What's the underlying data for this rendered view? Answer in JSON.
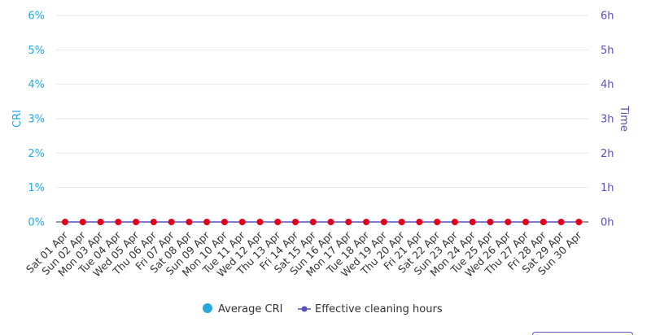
{
  "chart_data": {
    "type": "line",
    "categories": [
      "Sat 01 Apr",
      "Sun 02 Apr",
      "Mon 03 Apr",
      "Tue 04 Apr",
      "Wed 05 Apr",
      "Thu 06 Apr",
      "Fri 07 Apr",
      "Sat 08 Apr",
      "Sun 09 Apr",
      "Mon 10 Apr",
      "Tue 11 Apr",
      "Wed 12 Apr",
      "Thu 13 Apr",
      "Fri 14 Apr",
      "Sat 15 Apr",
      "Sun 16 Apr",
      "Mon 17 Apr",
      "Tue 18 Apr",
      "Wed 19 Apr",
      "Thu 20 Apr",
      "Fri 21 Apr",
      "Sat 22 Apr",
      "Sun 23 Apr",
      "Mon 24 Apr",
      "Tue 25 Apr",
      "Wed 26 Apr",
      "Thu 27 Apr",
      "Fri 28 Apr",
      "Sat 29 Apr",
      "Sun 30 Apr"
    ],
    "series": [
      {
        "name": "Average CRI",
        "axis": "left",
        "color": "#29a8e0",
        "values": [
          0,
          0,
          0,
          0,
          0,
          0,
          0,
          0,
          0,
          0,
          0,
          0,
          0,
          0,
          0,
          0,
          0,
          0,
          0,
          0,
          0,
          0,
          0,
          0,
          0,
          0,
          0,
          0,
          0,
          0
        ]
      },
      {
        "name": "Effective cleaning hours",
        "axis": "right",
        "color": "#5a4fbf",
        "values": [
          0,
          0,
          0,
          0,
          0,
          0,
          0,
          0,
          0,
          0,
          0,
          0,
          0,
          0,
          0,
          0,
          0,
          0,
          0,
          0,
          0,
          0,
          0,
          0,
          0,
          0,
          0,
          0,
          0,
          0
        ]
      }
    ],
    "point_color": "#e0001a",
    "y_left": {
      "label": "CRI",
      "ylim": [
        0,
        6
      ],
      "ticks": [
        "0%",
        "1%",
        "2%",
        "3%",
        "4%",
        "5%",
        "6%"
      ]
    },
    "y_right": {
      "label": "Time",
      "ylim": [
        0,
        6
      ],
      "ticks": [
        "0h",
        "1h",
        "2h",
        "3h",
        "4h",
        "5h",
        "6h"
      ]
    },
    "grid": true,
    "legend_position": "bottom-center"
  }
}
